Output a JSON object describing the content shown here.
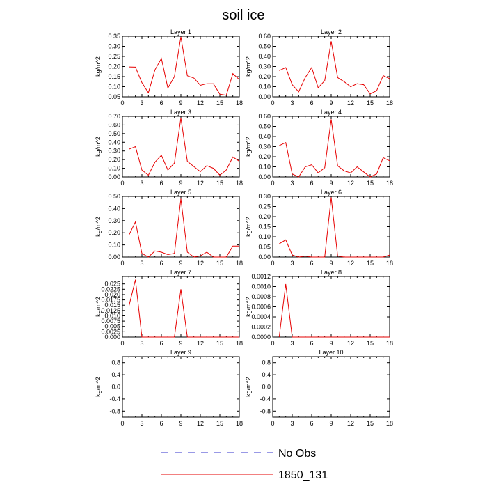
{
  "title": "soil ice",
  "legend": [
    {
      "label": "No Obs",
      "color": "#3333cc",
      "dash": true
    },
    {
      "label": "1850_131",
      "color": "#e60000",
      "dash": false
    }
  ],
  "chart_data": [
    {
      "type": "line",
      "title": "Layer 1",
      "ylabel": "kg/m^2",
      "xlim": [
        0,
        18
      ],
      "ylim": [
        0.05,
        0.35
      ],
      "xticks": [
        0,
        3,
        6,
        9,
        12,
        15,
        18
      ],
      "yticks": [
        0.05,
        0.1,
        0.15,
        0.2,
        0.25,
        0.3,
        0.35
      ],
      "ytick_labels": [
        "0.05",
        "0.10",
        "0.15",
        "0.20",
        "0.25",
        "0.30",
        "0.35"
      ],
      "x": [
        1,
        2,
        3,
        4,
        5,
        6,
        7,
        8,
        9,
        10,
        11,
        12,
        13,
        14,
        15,
        16,
        17,
        18
      ],
      "series": [
        {
          "name": "1850_131",
          "color": "#e60000",
          "values": [
            0.198,
            0.197,
            0.12,
            0.07,
            0.183,
            0.24,
            0.093,
            0.15,
            0.347,
            0.154,
            0.143,
            0.107,
            0.115,
            0.115,
            0.063,
            0.058,
            0.165,
            0.135
          ]
        }
      ]
    },
    {
      "type": "line",
      "title": "Layer 2",
      "ylabel": "kg/m^2",
      "xlim": [
        0,
        18
      ],
      "ylim": [
        0.0,
        0.6
      ],
      "xticks": [
        0,
        3,
        6,
        9,
        12,
        15,
        18
      ],
      "yticks": [
        0.0,
        0.1,
        0.2,
        0.3,
        0.4,
        0.5,
        0.6
      ],
      "ytick_labels": [
        "0.00",
        "0.10",
        "0.20",
        "0.30",
        "0.40",
        "0.50",
        "0.60"
      ],
      "x": [
        1,
        2,
        3,
        4,
        5,
        6,
        7,
        8,
        9,
        10,
        11,
        12,
        13,
        14,
        15,
        16,
        17,
        18
      ],
      "series": [
        {
          "name": "1850_131",
          "color": "#e60000",
          "values": [
            0.26,
            0.29,
            0.12,
            0.05,
            0.19,
            0.29,
            0.09,
            0.16,
            0.55,
            0.19,
            0.15,
            0.1,
            0.13,
            0.12,
            0.03,
            0.06,
            0.21,
            0.18
          ]
        }
      ]
    },
    {
      "type": "line",
      "title": "Layer 3",
      "ylabel": "kg/m^2",
      "xlim": [
        0,
        18
      ],
      "ylim": [
        0.0,
        0.7
      ],
      "xticks": [
        0,
        3,
        6,
        9,
        12,
        15,
        18
      ],
      "yticks": [
        0.0,
        0.1,
        0.2,
        0.3,
        0.4,
        0.5,
        0.6,
        0.7
      ],
      "ytick_labels": [
        "0.00",
        "0.10",
        "0.20",
        "0.30",
        "0.40",
        "0.50",
        "0.60",
        "0.70"
      ],
      "x": [
        1,
        2,
        3,
        4,
        5,
        6,
        7,
        8,
        9,
        10,
        11,
        12,
        13,
        14,
        15,
        16,
        17,
        18
      ],
      "series": [
        {
          "name": "1850_131",
          "color": "#e60000",
          "values": [
            0.32,
            0.35,
            0.08,
            0.02,
            0.17,
            0.25,
            0.08,
            0.16,
            0.68,
            0.18,
            0.12,
            0.06,
            0.13,
            0.1,
            0.02,
            0.08,
            0.23,
            0.18
          ]
        }
      ]
    },
    {
      "type": "line",
      "title": "Layer 4",
      "ylabel": "kg/m^2",
      "xlim": [
        0,
        18
      ],
      "ylim": [
        0.0,
        0.6
      ],
      "xticks": [
        0,
        3,
        6,
        9,
        12,
        15,
        18
      ],
      "yticks": [
        0.0,
        0.1,
        0.2,
        0.3,
        0.4,
        0.5,
        0.6
      ],
      "ytick_labels": [
        "0.00",
        "0.10",
        "0.20",
        "0.30",
        "0.40",
        "0.50",
        "0.60"
      ],
      "x": [
        1,
        2,
        3,
        4,
        5,
        6,
        7,
        8,
        9,
        10,
        11,
        12,
        13,
        14,
        15,
        16,
        17,
        18
      ],
      "series": [
        {
          "name": "1850_131",
          "color": "#e60000",
          "values": [
            0.31,
            0.34,
            0.03,
            0.0,
            0.1,
            0.12,
            0.04,
            0.09,
            0.57,
            0.11,
            0.06,
            0.04,
            0.1,
            0.05,
            0.0,
            0.03,
            0.19,
            0.16
          ]
        }
      ]
    },
    {
      "type": "line",
      "title": "Layer 5",
      "ylabel": "kg/m^2",
      "xlim": [
        0,
        18
      ],
      "ylim": [
        0.0,
        0.5
      ],
      "xticks": [
        0,
        3,
        6,
        9,
        12,
        15,
        18
      ],
      "yticks": [
        0.0,
        0.1,
        0.2,
        0.3,
        0.4,
        0.5
      ],
      "ytick_labels": [
        "0.00",
        "0.10",
        "0.20",
        "0.30",
        "0.40",
        "0.50"
      ],
      "x": [
        1,
        2,
        3,
        4,
        5,
        6,
        7,
        8,
        9,
        10,
        11,
        12,
        13,
        14,
        15,
        16,
        17,
        18
      ],
      "series": [
        {
          "name": "1850_131",
          "color": "#e60000",
          "values": [
            0.18,
            0.29,
            0.03,
            0.0,
            0.05,
            0.04,
            0.02,
            0.03,
            0.48,
            0.04,
            0.0,
            0.01,
            0.04,
            0.0,
            0.0,
            0.0,
            0.09,
            0.09
          ]
        }
      ]
    },
    {
      "type": "line",
      "title": "Layer 6",
      "ylabel": "kg/m^2",
      "xlim": [
        0,
        18
      ],
      "ylim": [
        0.0,
        0.3
      ],
      "xticks": [
        0,
        3,
        6,
        9,
        12,
        15,
        18
      ],
      "yticks": [
        0.0,
        0.05,
        0.1,
        0.15,
        0.2,
        0.25,
        0.3
      ],
      "ytick_labels": [
        "0.00",
        "0.05",
        "0.10",
        "0.15",
        "0.20",
        "0.25",
        "0.30"
      ],
      "x": [
        1,
        2,
        3,
        4,
        5,
        6,
        7,
        8,
        9,
        10,
        11,
        12,
        13,
        14,
        15,
        16,
        17,
        18
      ],
      "series": [
        {
          "name": "1850_131",
          "color": "#e60000",
          "values": [
            0.065,
            0.085,
            0.01,
            0.0,
            0.005,
            0.0,
            0.0,
            0.0,
            0.295,
            0.005,
            0.0,
            0.0,
            0.0,
            0.0,
            0.0,
            0.0,
            0.0,
            0.01
          ]
        }
      ]
    },
    {
      "type": "line",
      "title": "Layer 7",
      "ylabel": "kg/m^2",
      "xlim": [
        0,
        18
      ],
      "ylim": [
        0.0,
        0.0285
      ],
      "xticks": [
        0,
        3,
        6,
        9,
        12,
        15,
        18
      ],
      "yticks": [
        0.0,
        0.0025,
        0.005,
        0.0075,
        0.01,
        0.0125,
        0.015,
        0.0175,
        0.02,
        0.0225,
        0.025
      ],
      "ytick_labels": [
        "0.000",
        "0.0025",
        "0.005",
        "0.0075",
        "0.010",
        "0.0125",
        "0.015",
        "0.0175",
        "0.020",
        "0.0225",
        "0.025"
      ],
      "x": [
        1,
        2,
        3,
        4,
        5,
        6,
        7,
        8,
        9,
        10,
        11,
        12,
        13,
        14,
        15,
        16,
        17,
        18
      ],
      "series": [
        {
          "name": "1850_131",
          "color": "#e60000",
          "values": [
            0.0145,
            0.027,
            0.0,
            0.0,
            0.0,
            0.0,
            0.0,
            0.0,
            0.0225,
            0.0,
            0.0,
            0.0,
            0.0,
            0.0,
            0.0,
            0.0,
            0.0,
            0.0
          ]
        }
      ]
    },
    {
      "type": "line",
      "title": "Layer 8",
      "ylabel": "kg/m^2",
      "xlim": [
        0,
        18
      ],
      "ylim": [
        0.0,
        0.0012
      ],
      "xticks": [
        0,
        3,
        6,
        9,
        12,
        15,
        18
      ],
      "yticks": [
        0.0,
        0.0002,
        0.0004,
        0.0006,
        0.0008,
        0.001,
        0.0012
      ],
      "ytick_labels": [
        "0.0000",
        "0.0002",
        "0.0004",
        "0.0006",
        "0.0008",
        "0.0010",
        "0.0012"
      ],
      "x": [
        1,
        2,
        3,
        4,
        5,
        6,
        7,
        8,
        9,
        10,
        11,
        12,
        13,
        14,
        15,
        16,
        17,
        18
      ],
      "series": [
        {
          "name": "1850_131",
          "color": "#e60000",
          "values": [
            0.0,
            0.00105,
            0.0,
            0.0,
            0.0,
            0.0,
            0.0,
            0.0,
            0.0,
            0.0,
            0.0,
            0.0,
            0.0,
            0.0,
            0.0,
            0.0,
            0.0,
            0.0
          ]
        }
      ]
    },
    {
      "type": "line",
      "title": "Layer 9",
      "ylabel": "kg/m^2",
      "xlim": [
        0,
        18
      ],
      "ylim": [
        -1.0,
        1.0
      ],
      "xticks": [
        0,
        3,
        6,
        9,
        12,
        15,
        18
      ],
      "yticks": [
        -0.8,
        -0.4,
        0.0,
        0.4,
        0.8
      ],
      "ytick_labels": [
        "-0.8",
        "-0.4",
        "0.0",
        "0.4",
        "0.8"
      ],
      "x": [
        1,
        2,
        3,
        4,
        5,
        6,
        7,
        8,
        9,
        10,
        11,
        12,
        13,
        14,
        15,
        16,
        17,
        18
      ],
      "series": [
        {
          "name": "1850_131",
          "color": "#e60000",
          "values": [
            0,
            0,
            0,
            0,
            0,
            0,
            0,
            0,
            0,
            0,
            0,
            0,
            0,
            0,
            0,
            0,
            0,
            0
          ]
        }
      ]
    },
    {
      "type": "line",
      "title": "Layer 10",
      "ylabel": "kg/m^2",
      "xlim": [
        0,
        18
      ],
      "ylim": [
        -1.0,
        1.0
      ],
      "xticks": [
        0,
        3,
        6,
        9,
        12,
        15,
        18
      ],
      "yticks": [
        -0.8,
        -0.4,
        0.0,
        0.4,
        0.8
      ],
      "ytick_labels": [
        "-0.8",
        "-0.4",
        "0.0",
        "0.4",
        "0.8"
      ],
      "x": [
        1,
        2,
        3,
        4,
        5,
        6,
        7,
        8,
        9,
        10,
        11,
        12,
        13,
        14,
        15,
        16,
        17,
        18
      ],
      "series": [
        {
          "name": "1850_131",
          "color": "#e60000",
          "values": [
            0,
            0,
            0,
            0,
            0,
            0,
            0,
            0,
            0,
            0,
            0,
            0,
            0,
            0,
            0,
            0,
            0,
            0
          ]
        }
      ]
    }
  ]
}
